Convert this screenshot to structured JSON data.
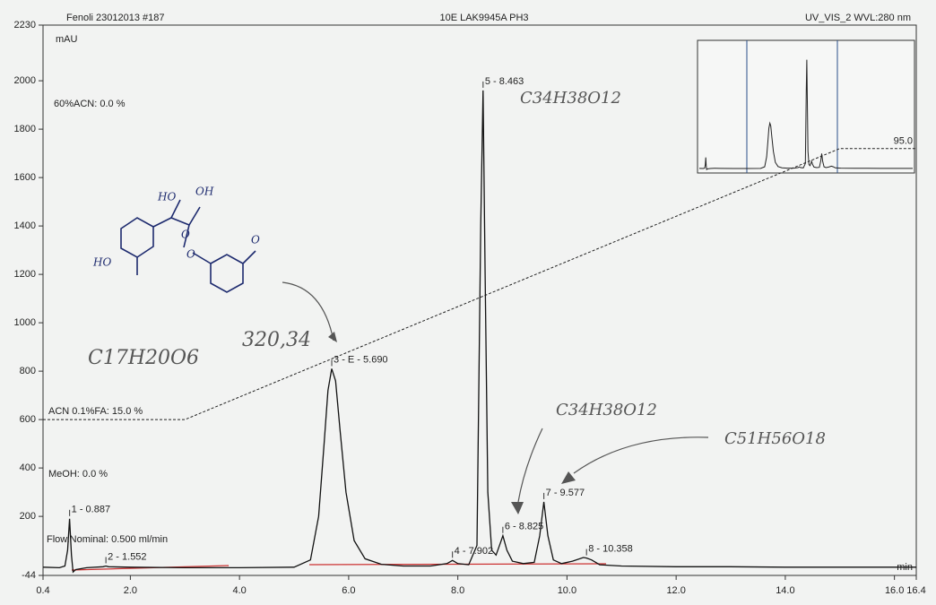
{
  "chart_data": {
    "type": "line",
    "header": {
      "sample": "Fenoli 23012013 #187",
      "program": "10E LAK9945A PH3",
      "channel": "UV_VIS_2 WVL:280 nm"
    },
    "y_unit": "mAU",
    "x_unit": "min",
    "method_labels": [
      "60%ACN: 0.0 %",
      "ACN 0.1%FA: 15.0 %",
      "MeOH: 0.0 %",
      "Flow.Nominal: 0.500 ml/min"
    ],
    "x": [
      0.4,
      0.7,
      0.8,
      0.85,
      0.887,
      0.92,
      0.95,
      1.0,
      1.2,
      1.5,
      1.552,
      1.6,
      2.0,
      3.0,
      4.0,
      5.0,
      5.3,
      5.45,
      5.55,
      5.62,
      5.69,
      5.76,
      5.84,
      5.95,
      6.1,
      6.3,
      6.6,
      7.0,
      7.5,
      7.8,
      7.902,
      8.0,
      8.2,
      8.35,
      8.42,
      8.463,
      8.5,
      8.55,
      8.62,
      8.7,
      8.78,
      8.825,
      8.9,
      9.0,
      9.2,
      9.4,
      9.5,
      9.577,
      9.65,
      9.75,
      9.9,
      10.1,
      10.3,
      10.358,
      10.45,
      10.6,
      11,
      12,
      13,
      14,
      15,
      16,
      16.4
    ],
    "values": [
      -10,
      -12,
      -5,
      60,
      190,
      40,
      -30,
      -20,
      -12,
      -8,
      -5,
      -8,
      -10,
      -12,
      -12,
      -10,
      20,
      200,
      500,
      720,
      810,
      760,
      560,
      300,
      100,
      25,
      2,
      -5,
      -5,
      5,
      18,
      5,
      0,
      80,
      1400,
      1960,
      1200,
      300,
      60,
      40,
      90,
      120,
      60,
      15,
      5,
      10,
      120,
      260,
      120,
      20,
      5,
      15,
      30,
      28,
      20,
      0,
      -5,
      -8,
      -8,
      -10,
      -10,
      -10,
      -10
    ],
    "color": "#111111",
    "peaks": [
      {
        "label": "1 - 0.887",
        "x": 0.887,
        "y": 190
      },
      {
        "label": "2 - 1.552",
        "x": 1.552,
        "y": -5
      },
      {
        "label": "3 - E - 5.690",
        "x": 5.69,
        "y": 810
      },
      {
        "label": "4 - 7.902",
        "x": 7.902,
        "y": 18
      },
      {
        "label": "5 - 8.463",
        "x": 8.463,
        "y": 1960
      },
      {
        "label": "6 - 8.825",
        "x": 8.825,
        "y": 120
      },
      {
        "label": "7 - 9.577",
        "x": 9.577,
        "y": 260
      },
      {
        "label": "8 - 10.358",
        "x": 10.358,
        "y": 28
      }
    ],
    "gradient": {
      "x": [
        0.4,
        3.0,
        15.0,
        16.4
      ],
      "values": [
        600,
        600,
        1720,
        1720
      ],
      "end_label": "95.0"
    },
    "notes": [
      "C17H20O6",
      "320,34",
      "C34H38O12",
      "C34H38O12",
      "C51H56O18"
    ],
    "structure_labels": [
      "HO",
      "OH",
      "HO",
      "O",
      "O",
      "O"
    ],
    "xlim": [
      0.4,
      16.4
    ],
    "ylim": [
      -44,
      2230
    ],
    "xticks": [
      0.4,
      {
        "value": 2,
        "label": "2.0"
      },
      {
        "value": 4,
        "label": "4.0"
      },
      {
        "value": 6,
        "label": "6.0"
      },
      {
        "value": 8,
        "label": "8.0"
      },
      {
        "value": 10,
        "label": "10.0"
      },
      {
        "value": 12,
        "label": "12.0"
      },
      {
        "value": 14,
        "label": "14.0"
      },
      {
        "value": 16,
        "label": "16.0"
      },
      16.4
    ],
    "yticks": [
      -44,
      200,
      400,
      600,
      800,
      1000,
      1200,
      1400,
      1600,
      1800,
      2000,
      2230
    ]
  }
}
